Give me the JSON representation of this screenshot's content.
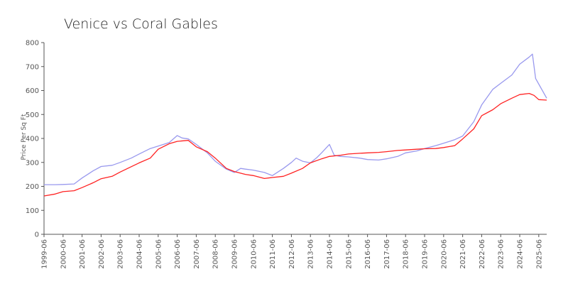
{
  "chart_data": {
    "type": "line",
    "title": "Venice vs Coral Gables",
    "xlabel": "",
    "ylabel": "Price Per Sq Ft",
    "ylim": [
      0,
      800
    ],
    "yticks": [
      0,
      100,
      200,
      300,
      400,
      500,
      600,
      700,
      800
    ],
    "xlim": [
      "1999-06",
      "2025-11"
    ],
    "xticks": [
      "1999-06",
      "2000-06",
      "2001-06",
      "2002-06",
      "2003-06",
      "2004-06",
      "2005-06",
      "2006-06",
      "2007-06",
      "2008-06",
      "2009-06",
      "2010-06",
      "2011-06",
      "2012-06",
      "2013-06",
      "2014-06",
      "2015-06",
      "2016-06",
      "2017-06",
      "2018-06",
      "2019-06",
      "2020-06",
      "2021-06",
      "2022-06",
      "2023-06",
      "2024-06",
      "2025-06"
    ],
    "grid": false,
    "legend": "none",
    "series": [
      {
        "color": "#9999ee",
        "points": [
          [
            "1999-06",
            207
          ],
          [
            "2000-01",
            207
          ],
          [
            "2000-06",
            208
          ],
          [
            "2001-01",
            210
          ],
          [
            "2001-06",
            235
          ],
          [
            "2002-01",
            265
          ],
          [
            "2002-06",
            283
          ],
          [
            "2003-01",
            288
          ],
          [
            "2003-06",
            300
          ],
          [
            "2004-01",
            318
          ],
          [
            "2004-06",
            335
          ],
          [
            "2005-01",
            358
          ],
          [
            "2005-06",
            368
          ],
          [
            "2006-01",
            383
          ],
          [
            "2006-06",
            412
          ],
          [
            "2006-09",
            402
          ],
          [
            "2007-01",
            398
          ],
          [
            "2007-06",
            375
          ],
          [
            "2008-01",
            340
          ],
          [
            "2008-06",
            305
          ],
          [
            "2009-01",
            272
          ],
          [
            "2009-06",
            258
          ],
          [
            "2009-10",
            275
          ],
          [
            "2010-01",
            272
          ],
          [
            "2010-06",
            268
          ],
          [
            "2011-01",
            258
          ],
          [
            "2011-06",
            245
          ],
          [
            "2012-01",
            275
          ],
          [
            "2012-06",
            300
          ],
          [
            "2012-09",
            318
          ],
          [
            "2013-01",
            305
          ],
          [
            "2013-06",
            298
          ],
          [
            "2013-10",
            320
          ],
          [
            "2014-01",
            340
          ],
          [
            "2014-06",
            375
          ],
          [
            "2014-09",
            330
          ],
          [
            "2015-01",
            325
          ],
          [
            "2015-06",
            323
          ],
          [
            "2016-01",
            318
          ],
          [
            "2016-06",
            312
          ],
          [
            "2017-01",
            310
          ],
          [
            "2017-06",
            315
          ],
          [
            "2018-01",
            325
          ],
          [
            "2018-06",
            340
          ],
          [
            "2019-01",
            348
          ],
          [
            "2019-06",
            358
          ],
          [
            "2020-01",
            370
          ],
          [
            "2020-06",
            380
          ],
          [
            "2021-01",
            395
          ],
          [
            "2021-06",
            410
          ],
          [
            "2022-01",
            470
          ],
          [
            "2022-06",
            540
          ],
          [
            "2023-01",
            605
          ],
          [
            "2023-06",
            630
          ],
          [
            "2024-01",
            665
          ],
          [
            "2024-06",
            710
          ],
          [
            "2024-12",
            740
          ],
          [
            "2025-02",
            752
          ],
          [
            "2025-04",
            650
          ],
          [
            "2025-11",
            568
          ]
        ]
      },
      {
        "color": "#ff2222",
        "points": [
          [
            "1999-06",
            160
          ],
          [
            "2000-01",
            168
          ],
          [
            "2000-06",
            178
          ],
          [
            "2001-01",
            182
          ],
          [
            "2001-06",
            195
          ],
          [
            "2002-01",
            215
          ],
          [
            "2002-06",
            232
          ],
          [
            "2003-01",
            242
          ],
          [
            "2003-06",
            260
          ],
          [
            "2004-01",
            282
          ],
          [
            "2004-06",
            298
          ],
          [
            "2005-01",
            318
          ],
          [
            "2005-06",
            355
          ],
          [
            "2006-01",
            378
          ],
          [
            "2006-06",
            388
          ],
          [
            "2007-01",
            392
          ],
          [
            "2007-06",
            365
          ],
          [
            "2008-01",
            345
          ],
          [
            "2008-06",
            318
          ],
          [
            "2009-01",
            275
          ],
          [
            "2009-06",
            262
          ],
          [
            "2010-01",
            250
          ],
          [
            "2010-06",
            245
          ],
          [
            "2011-01",
            233
          ],
          [
            "2011-06",
            237
          ],
          [
            "2012-01",
            242
          ],
          [
            "2012-06",
            255
          ],
          [
            "2013-01",
            275
          ],
          [
            "2013-06",
            298
          ],
          [
            "2014-01",
            315
          ],
          [
            "2014-06",
            325
          ],
          [
            "2015-01",
            330
          ],
          [
            "2015-06",
            335
          ],
          [
            "2016-01",
            338
          ],
          [
            "2016-06",
            340
          ],
          [
            "2017-01",
            342
          ],
          [
            "2017-06",
            345
          ],
          [
            "2018-01",
            350
          ],
          [
            "2018-06",
            352
          ],
          [
            "2019-01",
            355
          ],
          [
            "2019-06",
            357
          ],
          [
            "2020-01",
            358
          ],
          [
            "2020-06",
            362
          ],
          [
            "2021-01",
            370
          ],
          [
            "2021-06",
            398
          ],
          [
            "2022-01",
            440
          ],
          [
            "2022-06",
            495
          ],
          [
            "2023-01",
            520
          ],
          [
            "2023-06",
            545
          ],
          [
            "2024-01",
            568
          ],
          [
            "2024-06",
            583
          ],
          [
            "2024-12",
            588
          ],
          [
            "2025-03",
            580
          ],
          [
            "2025-06",
            562
          ],
          [
            "2025-11",
            560
          ]
        ]
      }
    ]
  }
}
